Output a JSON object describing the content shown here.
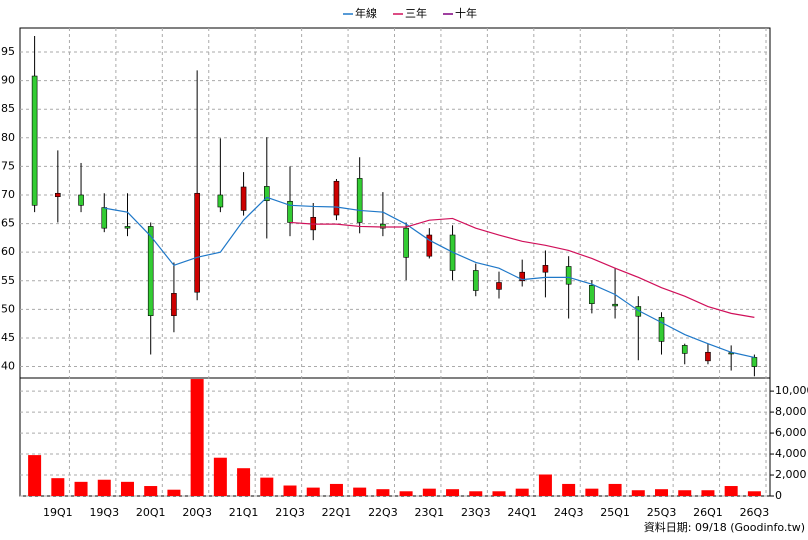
{
  "chart_data": {
    "type": "candlestick",
    "categories": [
      null,
      "19Q1",
      null,
      "19Q3",
      null,
      "20Q1",
      null,
      "20Q3",
      null,
      "21Q1",
      null,
      "21Q3",
      null,
      "22Q1",
      null,
      "22Q3",
      null,
      "23Q1",
      null,
      "23Q3",
      null,
      "24Q1",
      null,
      "24Q3",
      null,
      "25Q1",
      null,
      "25Q3",
      null,
      "26Q1",
      null,
      "26Q3"
    ],
    "open": [
      90.8,
      69.7,
      70.0,
      67.8,
      64.5,
      64.5,
      48.9,
      53.0,
      70.0,
      67.3,
      71.5,
      68.9,
      63.9,
      66.5,
      72.9,
      64.9,
      64.2,
      59.3,
      63.0,
      56.8,
      53.5,
      55.0,
      56.5,
      57.5,
      54.2,
      50.9,
      50.5,
      48.6,
      43.7,
      41.0,
      42.4,
      41.6
    ],
    "high": [
      97.8,
      77.8,
      75.6,
      70.3,
      70.3,
      65.2,
      58.2,
      91.8,
      79.9,
      74.0,
      80.1,
      75.0,
      68.6,
      72.8,
      76.6,
      70.5,
      65.2,
      64.2,
      64.7,
      58.0,
      56.6,
      58.7,
      60.3,
      59.3,
      55.1,
      57.2,
      52.3,
      49.5,
      44.0,
      44.0,
      43.7,
      42.1
    ],
    "low": [
      67.0,
      65.2,
      67.0,
      63.5,
      62.8,
      42.1,
      46.0,
      51.6,
      67.0,
      66.4,
      62.4,
      62.8,
      62.1,
      65.6,
      63.3,
      62.8,
      55.1,
      58.9,
      55.1,
      52.3,
      51.9,
      54.0,
      52.1,
      48.4,
      49.3,
      48.4,
      41.1,
      42.1,
      40.4,
      40.4,
      39.3,
      38.3
    ],
    "close": [
      68.2,
      70.3,
      68.2,
      64.2,
      64.2,
      48.9,
      52.8,
      70.3,
      67.9,
      71.4,
      69.0,
      65.2,
      66.1,
      72.4,
      65.2,
      64.2,
      59.1,
      63.0,
      56.8,
      53.3,
      54.7,
      56.5,
      57.7,
      54.4,
      51.0,
      50.6,
      48.8,
      44.4,
      42.3,
      42.5,
      42.2,
      40.0
    ],
    "up_color": "#cc0000",
    "down_color": "#33cc33",
    "series": [
      {
        "name": "年線",
        "color": "#1f78c8",
        "values": [
          null,
          null,
          null,
          67.7,
          67.0,
          62.8,
          57.7,
          59.1,
          60.0,
          65.6,
          69.6,
          68.2,
          68.0,
          67.9,
          67.3,
          67.0,
          64.9,
          62.1,
          60.0,
          58.2,
          57.2,
          55.2,
          55.6,
          55.6,
          54.4,
          52.6,
          49.8,
          47.7,
          45.6,
          44.0,
          42.5,
          41.6
        ]
      },
      {
        "name": "三年",
        "color": "#d0105a",
        "values": [
          null,
          null,
          null,
          null,
          null,
          null,
          null,
          null,
          null,
          null,
          null,
          65.2,
          64.9,
          64.9,
          64.5,
          64.4,
          64.4,
          65.6,
          65.9,
          64.2,
          63.0,
          61.9,
          61.2,
          60.3,
          58.9,
          57.2,
          55.6,
          53.8,
          52.3,
          50.5,
          49.3,
          48.6
        ]
      },
      {
        "name": "十年",
        "color": "#800080",
        "values": [
          null,
          null,
          null,
          null,
          null,
          null,
          null,
          null,
          null,
          null,
          null,
          null,
          null,
          null,
          null,
          null,
          null,
          null,
          null,
          null,
          null,
          null,
          null,
          null,
          null,
          null,
          null,
          null,
          null,
          null,
          null,
          null
        ]
      }
    ],
    "ylim": [
      38,
      99.2
    ],
    "yticks": [
      40,
      45,
      50,
      55,
      60,
      65,
      70,
      75,
      80,
      85,
      90,
      95
    ],
    "grid": true,
    "volume": {
      "color": "#ff0000",
      "values": [
        3900,
        1700,
        1350,
        1550,
        1350,
        950,
        600,
        11150,
        3650,
        2650,
        1750,
        1000,
        800,
        1150,
        800,
        650,
        450,
        700,
        650,
        450,
        450,
        700,
        2050,
        1150,
        700,
        1150,
        550,
        650,
        550,
        550,
        950,
        450
      ],
      "ylim": [
        0,
        11250
      ],
      "yticks": [
        0,
        {
          "value": 2000,
          "label": "2,000"
        },
        {
          "value": 4000,
          "label": "4,000"
        },
        {
          "value": 6000,
          "label": "6,000"
        },
        {
          "value": 8000,
          "label": "8,000"
        },
        {
          "value": 10000,
          "label": "10,000"
        }
      ]
    },
    "source": "資料日期: 09/18 (Goodinfo.tw)"
  }
}
